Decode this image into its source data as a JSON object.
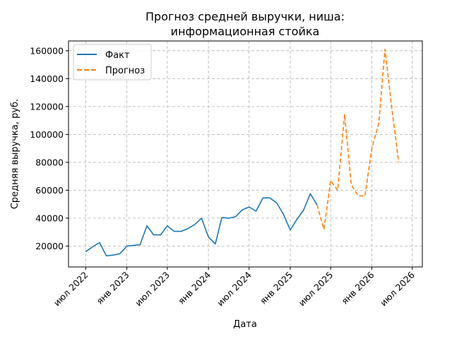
{
  "chart_data": {
    "type": "line",
    "title_lines": [
      "Прогноз средней выручки, ниша:",
      "информационная стойка"
    ],
    "xlabel": "Дата",
    "ylabel": "Средняя выручка, руб.",
    "x_range": [
      "2022-04-15",
      "2026-08-15"
    ],
    "ylim": [
      5000,
      167000
    ],
    "grid": true,
    "legend_position": "top-left",
    "x_ticks": [
      {
        "date": "2022-07-01",
        "label": "июл 2022"
      },
      {
        "date": "2023-01-01",
        "label": "янв 2023"
      },
      {
        "date": "2023-07-01",
        "label": "июл 2023"
      },
      {
        "date": "2024-01-01",
        "label": "янв 2024"
      },
      {
        "date": "2024-07-01",
        "label": "июл 2024"
      },
      {
        "date": "2025-01-01",
        "label": "янв 2025"
      },
      {
        "date": "2025-07-01",
        "label": "июл 2025"
      },
      {
        "date": "2026-01-01",
        "label": "янв 2026"
      },
      {
        "date": "2026-07-01",
        "label": "июл 2026"
      }
    ],
    "y_ticks": [
      20000,
      40000,
      60000,
      80000,
      100000,
      120000,
      140000,
      160000
    ],
    "series": [
      {
        "name": "Факт",
        "color": "#1f77b4",
        "dash": "solid",
        "points": [
          {
            "x": "2022-07-01",
            "y": 16000
          },
          {
            "x": "2022-08-01",
            "y": 19500
          },
          {
            "x": "2022-09-01",
            "y": 22500
          },
          {
            "x": "2022-10-01",
            "y": 13000
          },
          {
            "x": "2022-11-01",
            "y": 13500
          },
          {
            "x": "2022-12-01",
            "y": 14500
          },
          {
            "x": "2023-01-01",
            "y": 20000
          },
          {
            "x": "2023-02-01",
            "y": 20500
          },
          {
            "x": "2023-03-01",
            "y": 21000
          },
          {
            "x": "2023-04-01",
            "y": 34500
          },
          {
            "x": "2023-05-01",
            "y": 28000
          },
          {
            "x": "2023-06-01",
            "y": 28000
          },
          {
            "x": "2023-07-01",
            "y": 34500
          },
          {
            "x": "2023-08-01",
            "y": 30500
          },
          {
            "x": "2023-09-01",
            "y": 30500
          },
          {
            "x": "2023-10-01",
            "y": 32500
          },
          {
            "x": "2023-11-01",
            "y": 35500
          },
          {
            "x": "2023-12-01",
            "y": 40000
          },
          {
            "x": "2024-01-01",
            "y": 26500
          },
          {
            "x": "2024-02-01",
            "y": 21500
          },
          {
            "x": "2024-03-01",
            "y": 40500
          },
          {
            "x": "2024-04-01",
            "y": 40000
          },
          {
            "x": "2024-05-01",
            "y": 41000
          },
          {
            "x": "2024-06-01",
            "y": 46000
          },
          {
            "x": "2024-07-01",
            "y": 48000
          },
          {
            "x": "2024-08-01",
            "y": 45000
          },
          {
            "x": "2024-09-01",
            "y": 54500
          },
          {
            "x": "2024-10-01",
            "y": 54500
          },
          {
            "x": "2024-11-01",
            "y": 51000
          },
          {
            "x": "2024-12-01",
            "y": 43000
          },
          {
            "x": "2025-01-01",
            "y": 31500
          },
          {
            "x": "2025-02-01",
            "y": 39500
          },
          {
            "x": "2025-03-01",
            "y": 45500
          },
          {
            "x": "2025-04-01",
            "y": 57500
          },
          {
            "x": "2025-05-01",
            "y": 49500
          }
        ]
      },
      {
        "name": "Прогноз",
        "color": "#ff7f0e",
        "dash": "dashed",
        "points": [
          {
            "x": "2025-05-01",
            "y": 49500
          },
          {
            "x": "2025-06-01",
            "y": 32000
          },
          {
            "x": "2025-07-01",
            "y": 67000
          },
          {
            "x": "2025-08-01",
            "y": 60000
          },
          {
            "x": "2025-09-01",
            "y": 114500
          },
          {
            "x": "2025-10-01",
            "y": 64000
          },
          {
            "x": "2025-11-01",
            "y": 56000
          },
          {
            "x": "2025-12-01",
            "y": 56000
          },
          {
            "x": "2026-01-01",
            "y": 90000
          },
          {
            "x": "2026-02-01",
            "y": 108000
          },
          {
            "x": "2026-03-01",
            "y": 161000
          },
          {
            "x": "2026-04-01",
            "y": 118000
          },
          {
            "x": "2026-05-01",
            "y": 80000
          }
        ]
      }
    ]
  }
}
